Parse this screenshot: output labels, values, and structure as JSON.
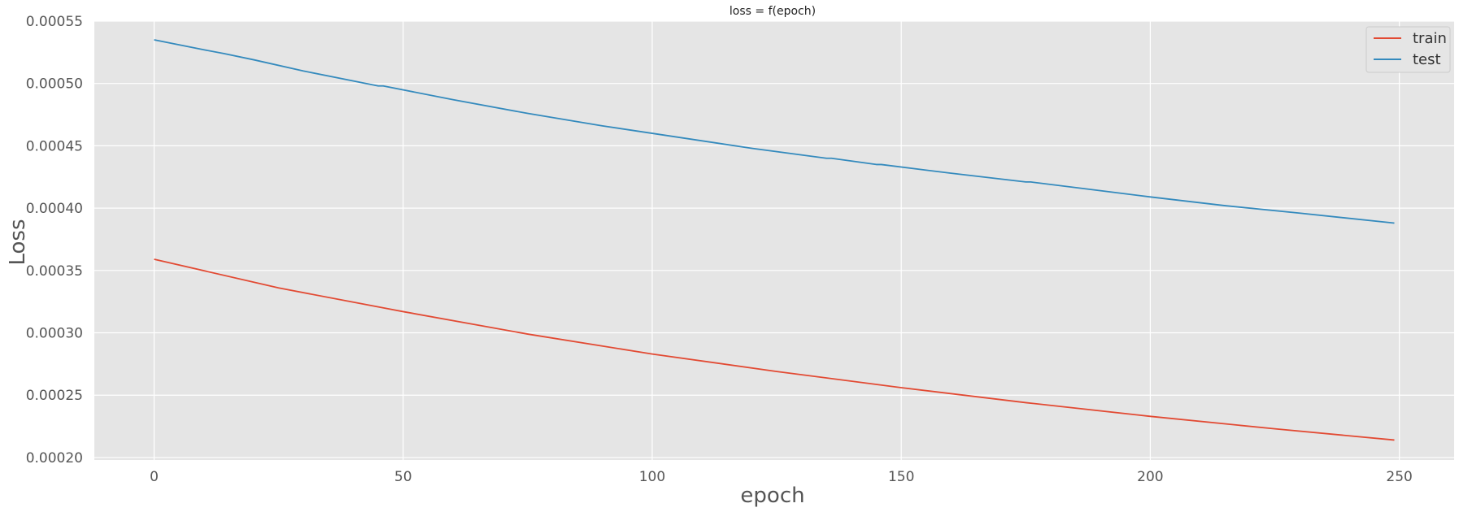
{
  "chart_data": {
    "type": "line",
    "title": "loss = f(epoch)",
    "xlabel": "epoch",
    "ylabel": "Loss",
    "xlim": [
      -12,
      261
    ],
    "ylim": [
      0.000198,
      0.00055
    ],
    "x_ticks": [
      0,
      50,
      100,
      150,
      200,
      250
    ],
    "x_tick_labels": [
      "0",
      "50",
      "100",
      "150",
      "200",
      "250"
    ],
    "y_ticks": [
      0.0002,
      0.00025,
      0.0003,
      0.00035,
      0.0004,
      0.00045,
      0.0005,
      0.00055
    ],
    "y_tick_labels": [
      "0.00020",
      "0.00025",
      "0.00030",
      "0.00035",
      "0.00040",
      "0.00045",
      "0.00050",
      "0.00055"
    ],
    "grid": true,
    "legend_position": "top-right",
    "series": [
      {
        "name": "train",
        "color": "#E24A33",
        "x": [
          0,
          25,
          50,
          75,
          100,
          125,
          150,
          175,
          200,
          225,
          249
        ],
        "y": [
          0.000359,
          0.000336,
          0.000317,
          0.000299,
          0.000283,
          0.000269,
          0.000256,
          0.000244,
          0.000233,
          0.000223,
          0.000214
        ]
      },
      {
        "name": "test",
        "color": "#348ABD",
        "x": [
          0,
          10,
          14,
          20,
          30,
          40,
          45,
          46,
          60,
          75,
          90,
          100,
          120,
          135,
          136,
          145,
          146,
          160,
          175,
          176,
          190,
          200,
          215,
          230,
          249
        ],
        "y": [
          0.000535,
          0.000527,
          0.000524,
          0.000519,
          0.00051,
          0.000502,
          0.000498,
          0.000498,
          0.000487,
          0.000476,
          0.000466,
          0.00046,
          0.000448,
          0.00044,
          0.00044,
          0.000435,
          0.000435,
          0.000428,
          0.000421,
          0.000421,
          0.000414,
          0.000409,
          0.000402,
          0.000396,
          0.000388
        ]
      }
    ]
  }
}
